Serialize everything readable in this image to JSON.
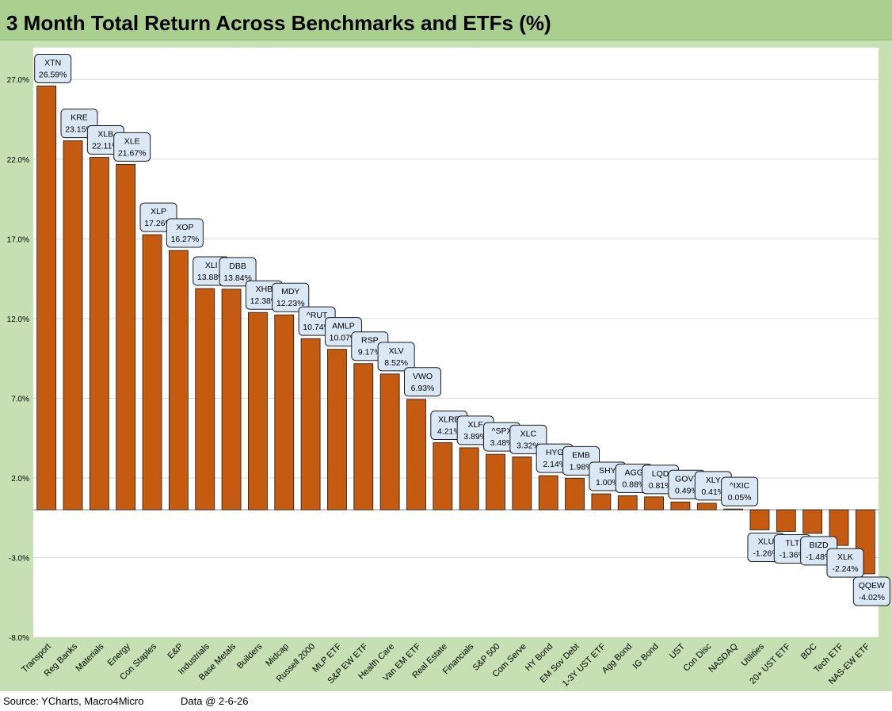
{
  "title": "3 Month Total Return Across Benchmarks and ETFs (%)",
  "footer": {
    "source": "Source: YCharts, Macro4Micro",
    "data_date": "Data @ 2-6-26"
  },
  "colors": {
    "bar": "#c55a11",
    "frame": "#c6e0b4",
    "title_bg": "#a9d08e",
    "label_box": "#dae8f5"
  },
  "chart_data": {
    "type": "bar",
    "title": "3 Month Total Return Across Benchmarks and ETFs (%)",
    "ylim": [
      -8,
      29
    ],
    "yticks": [
      -8,
      -3,
      2,
      7,
      12,
      17,
      22,
      27
    ],
    "ytick_labels": [
      "-8.0%",
      "-3.0%",
      "2.0%",
      "7.0%",
      "12.0%",
      "17.0%",
      "22.0%",
      "27.0%"
    ],
    "grid": true,
    "categories": [
      "Transport",
      "Reg Banks",
      "Materials",
      "Energy",
      "Con Staples",
      "E&P",
      "Industrials",
      "Base Metals",
      "Builders",
      "Midcap",
      "Russell 2000",
      "MLP ETF",
      "S&P EW ETF",
      "Health Care",
      "Van EM ETF",
      "Real Estate",
      "Financials",
      "S&P 500",
      "Com Serve",
      "HY Bond",
      "EM Sov Debt",
      "1-3Y UST ETF",
      "Agg Bond",
      "IG Bond",
      "UST",
      "Con Disc",
      "NASDAQ",
      "Utilities",
      "20+ UST ETF",
      "BDC",
      "Tech ETF",
      "NAS-EW ETF"
    ],
    "tickers": [
      "XTN",
      "KRE",
      "XLB",
      "XLE",
      "XLP",
      "XOP",
      "XLI",
      "DBB",
      "XHB",
      "MDY",
      "^RUT",
      "AMLP",
      "RSP",
      "XLV",
      "VWO",
      "XLRE",
      "XLF",
      "^SPX",
      "XLC",
      "HYG",
      "EMB",
      "SHY",
      "AGG",
      "LQD",
      "GOVT",
      "XLY",
      "^IXIC",
      "XLU",
      "TLT",
      "BIZD",
      "XLK",
      "QQEW"
    ],
    "values": [
      26.59,
      23.15,
      22.11,
      21.67,
      17.26,
      16.27,
      13.88,
      13.84,
      12.38,
      12.23,
      10.74,
      10.07,
      9.17,
      8.52,
      6.93,
      4.21,
      3.89,
      3.48,
      3.32,
      2.14,
      1.98,
      1.0,
      0.88,
      0.81,
      0.49,
      0.41,
      0.05,
      -1.26,
      -1.36,
      -1.48,
      -2.24,
      -4.02
    ],
    "value_labels": [
      "26.59%",
      "23.15%",
      "22.11%",
      "21.67%",
      "17.26%",
      "16.27%",
      "13.88%",
      "13.84%",
      "12.38%",
      "12.23%",
      "10.74%",
      "10.07%",
      "9.17%",
      "8.52%",
      "6.93%",
      "4.21%",
      "3.89%",
      "3.48%",
      "3.32%",
      "2.14%",
      "1.98%",
      "1.00%",
      "0.88%",
      "0.81%",
      "0.49%",
      "0.41%",
      "0.05%",
      "-1.26%",
      "-1.36%",
      "-1.48%",
      "-2.24%",
      "-4.02%"
    ]
  }
}
